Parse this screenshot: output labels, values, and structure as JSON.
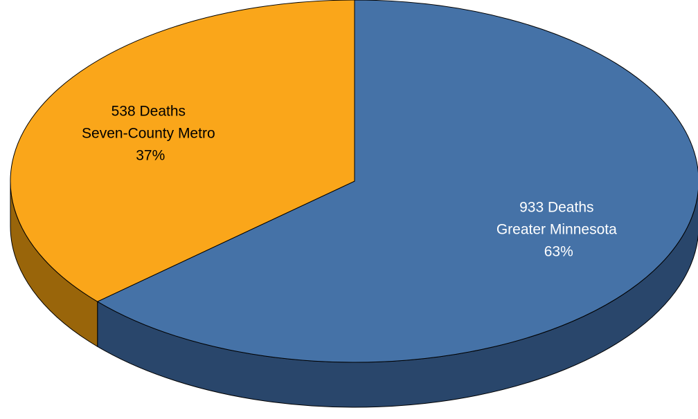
{
  "chart_data": {
    "type": "pie",
    "style": "3d",
    "slices": [
      {
        "name": "Greater Minnesota",
        "value": 933,
        "percent": "63%",
        "label_lines": [
          "933 Deaths",
          "Greater Minnesota",
          "63%"
        ],
        "color": "#4572a7",
        "side_color": "#29466b",
        "label_color": "#ffffff"
      },
      {
        "name": "Seven-County Metro",
        "value": 538,
        "percent": "37%",
        "label_lines": [
          "538 Deaths",
          "Seven-County Metro",
          "37%"
        ],
        "color": "#faa61a",
        "side_color": "#99650a",
        "label_color": "#000000"
      }
    ]
  }
}
